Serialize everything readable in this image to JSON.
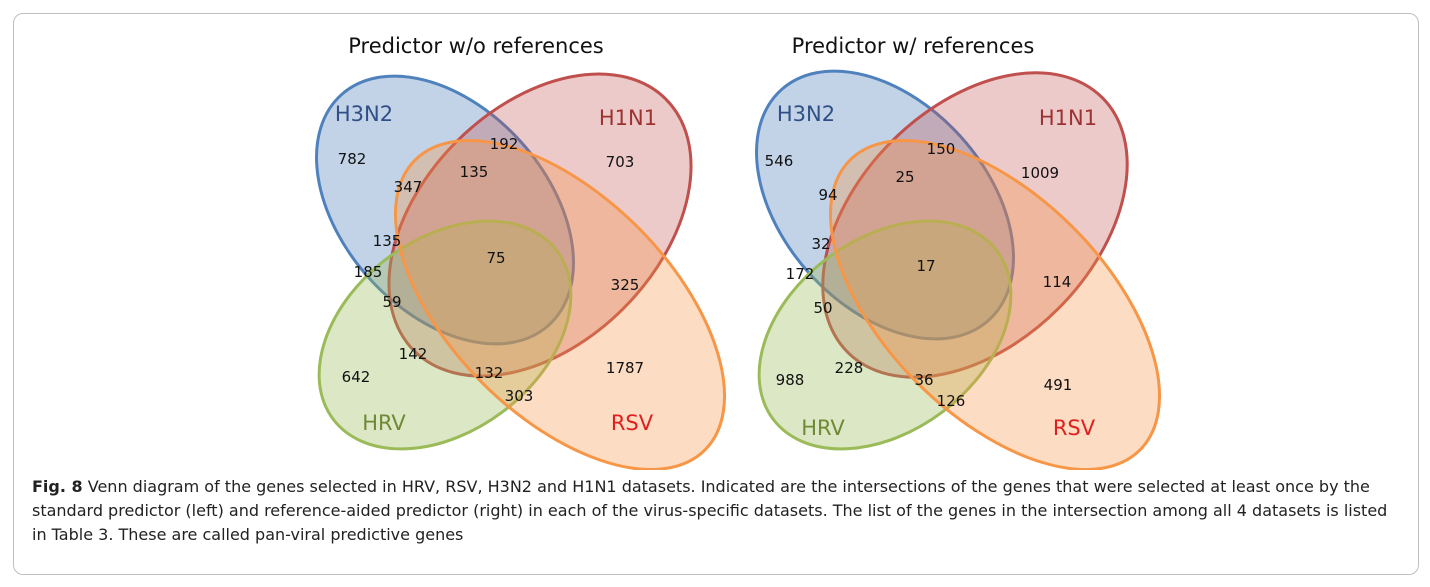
{
  "panels": [
    {
      "title": "Predictor w/o references",
      "sets": {
        "h3n2": "H3N2",
        "h1n1": "H1N1",
        "hrv": "HRV",
        "rsv": "RSV"
      },
      "regions": {
        "h3n2_only": "782",
        "h1n1_only": "703",
        "rsv_only": "1787",
        "hrv_only": "642",
        "h3n2_h1n1": "192",
        "h3n2_rsv_top": "347",
        "h3n2_h1n1_rsv": "135",
        "h3n2_hrv_rsv": "135",
        "h3n2_hrv": "185",
        "h3n2_hrv_h1n1": "59",
        "all": "75",
        "h1n1_rsv": "325",
        "hrv_h1n1": "142",
        "hrv_h1n1_rsv": "132",
        "hrv_rsv": "303"
      }
    },
    {
      "title": "Predictor w/ references",
      "sets": {
        "h3n2": "H3N2",
        "h1n1": "H1N1",
        "hrv": "HRV",
        "rsv": "RSV"
      },
      "regions": {
        "h3n2_only": "546",
        "h1n1_only": "1009",
        "rsv_only": "491",
        "hrv_only": "988",
        "h3n2_h1n1": "150",
        "h3n2_rsv_top": "94",
        "h3n2_h1n1_rsv": "25",
        "h3n2_hrv_rsv": "32",
        "h3n2_hrv": "172",
        "h3n2_hrv_h1n1": "50",
        "all": "17",
        "h1n1_rsv": "114",
        "hrv_h1n1": "228",
        "hrv_h1n1_rsv": "36",
        "hrv_rsv": "126"
      }
    }
  ],
  "colors": {
    "h3n2": "#4f81bd",
    "h1n1": "#c0504d",
    "hrv": "#9bbb59",
    "rsv": "#f79646",
    "rsv_label": "#e02020"
  },
  "caption": {
    "label": "Fig. 8",
    "text": "Venn diagram of the genes selected in HRV, RSV, H3N2 and H1N1 datasets. Indicated are the intersections of the genes that were selected at least once by the standard predictor (left) and reference-aided predictor (right) in each of the virus-specific datasets. The list of the genes in the intersection among all 4 datasets is listed in Table 3. These are called pan-viral predictive genes"
  }
}
